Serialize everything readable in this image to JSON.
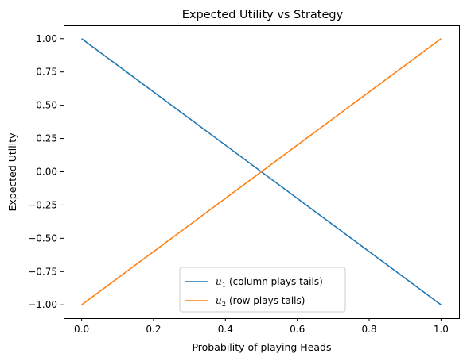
{
  "chart_data": {
    "type": "line",
    "title": "Expected Utility vs Strategy",
    "xlabel": "Probability of playing Heads",
    "ylabel": "Expected Utility",
    "xlim": [
      -0.05,
      1.05
    ],
    "ylim": [
      -1.1,
      1.1
    ],
    "xticks": [
      0.0,
      0.2,
      0.4,
      0.6,
      0.8,
      1.0
    ],
    "xtick_labels": [
      "0.0",
      "0.2",
      "0.4",
      "0.6",
      "0.8",
      "1.0"
    ],
    "yticks": [
      1.0,
      0.75,
      0.5,
      0.25,
      0.0,
      -0.25,
      -0.5,
      -0.75,
      -1.0
    ],
    "ytick_labels": [
      "1.00",
      "0.75",
      "0.50",
      "0.25",
      "0.00",
      "−0.25",
      "−0.50",
      "−0.75",
      "−1.00"
    ],
    "grid": false,
    "legend_position": "bottom-center",
    "series": [
      {
        "name": "u1 (column plays tails)",
        "legend_var": "u",
        "legend_sub": "1",
        "legend_rest": " (column plays tails)",
        "color": "#1f77b4",
        "x": [
          0.0,
          1.0
        ],
        "y": [
          1.0,
          -1.0
        ]
      },
      {
        "name": "u2 (row plays tails)",
        "legend_var": "u",
        "legend_sub": "2",
        "legend_rest": " (row plays tails)",
        "color": "#ff7f0e",
        "x": [
          0.0,
          1.0
        ],
        "y": [
          -1.0,
          1.0
        ]
      }
    ]
  }
}
